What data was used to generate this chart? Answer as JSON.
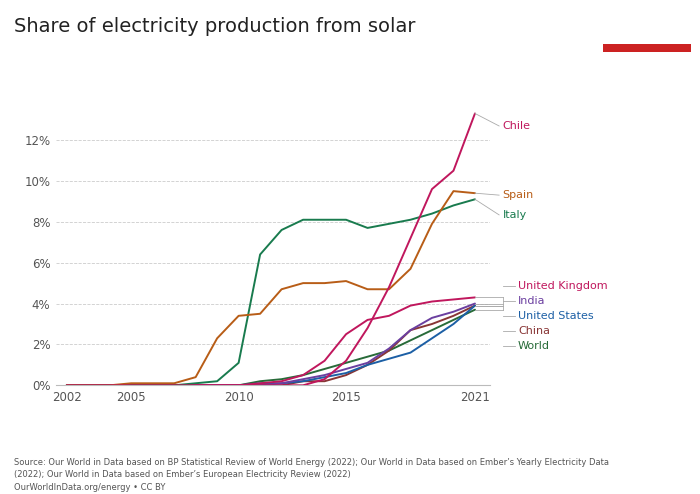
{
  "title": "Share of electricity production from solar",
  "years": [
    2002,
    2003,
    2004,
    2005,
    2006,
    2007,
    2008,
    2009,
    2010,
    2011,
    2012,
    2013,
    2014,
    2015,
    2016,
    2017,
    2018,
    2019,
    2020,
    2021
  ],
  "series": {
    "Chile": {
      "color": "#C0175D",
      "values": [
        0.0,
        0.0,
        0.0,
        0.0,
        0.0,
        0.0,
        0.0,
        0.0,
        0.0,
        0.0,
        0.0,
        0.0,
        0.3,
        1.2,
        2.8,
        4.8,
        7.2,
        9.6,
        10.5,
        13.3
      ]
    },
    "Spain": {
      "color": "#B85D17",
      "values": [
        0.0,
        0.0,
        0.0,
        0.1,
        0.1,
        0.1,
        0.4,
        2.3,
        3.4,
        3.5,
        4.7,
        5.0,
        5.0,
        5.1,
        4.7,
        4.7,
        5.7,
        7.9,
        9.5,
        9.4
      ]
    },
    "Italy": {
      "color": "#197B4E",
      "values": [
        0.0,
        0.0,
        0.0,
        0.0,
        0.0,
        0.0,
        0.1,
        0.2,
        1.1,
        6.4,
        7.6,
        8.1,
        8.1,
        8.1,
        7.7,
        7.9,
        8.1,
        8.4,
        8.8,
        9.1
      ]
    },
    "United Kingdom": {
      "color": "#C0175D",
      "values": [
        0.0,
        0.0,
        0.0,
        0.0,
        0.0,
        0.0,
        0.0,
        0.0,
        0.0,
        0.1,
        0.2,
        0.5,
        1.2,
        2.5,
        3.2,
        3.4,
        3.9,
        4.1,
        4.2,
        4.3
      ]
    },
    "India": {
      "color": "#6B3FA0",
      "values": [
        0.0,
        0.0,
        0.0,
        0.0,
        0.0,
        0.0,
        0.0,
        0.0,
        0.0,
        0.0,
        0.1,
        0.3,
        0.5,
        0.8,
        1.1,
        1.8,
        2.7,
        3.3,
        3.6,
        4.0
      ]
    },
    "United States": {
      "color": "#1C5FA5",
      "values": [
        0.0,
        0.0,
        0.0,
        0.0,
        0.0,
        0.0,
        0.0,
        0.0,
        0.0,
        0.1,
        0.1,
        0.2,
        0.4,
        0.6,
        1.0,
        1.3,
        1.6,
        2.3,
        3.0,
        3.9
      ]
    },
    "China": {
      "color": "#883535",
      "values": [
        0.0,
        0.0,
        0.0,
        0.0,
        0.0,
        0.0,
        0.0,
        0.0,
        0.0,
        0.0,
        0.0,
        0.2,
        0.2,
        0.5,
        1.0,
        1.7,
        2.7,
        3.0,
        3.4,
        3.9
      ]
    },
    "World": {
      "color": "#286B39",
      "values": [
        0.0,
        0.0,
        0.0,
        0.0,
        0.0,
        0.0,
        0.0,
        0.0,
        0.0,
        0.2,
        0.3,
        0.5,
        0.8,
        1.1,
        1.4,
        1.7,
        2.2,
        2.7,
        3.2,
        3.7
      ]
    }
  },
  "ylim": [
    0,
    0.145
  ],
  "yticks": [
    0.0,
    0.02,
    0.04,
    0.06,
    0.08,
    0.1,
    0.12
  ],
  "ytick_labels": [
    "0%",
    "2%",
    "4%",
    "6%",
    "8%",
    "10%",
    "12%"
  ],
  "xticks": [
    2002,
    2005,
    2010,
    2015,
    2021
  ],
  "source_text": "Source: Our World in Data based on BP Statistical Review of World Energy (2022); Our World in Data based on Ember’s Yearly Electricity Data\n(2022); Our World in Data based on Ember’s European Electricity Review (2022)\nOurWorldInData.org/energy • CC BY",
  "background_color": "#FFFFFF",
  "logo_bg": "#1A3A5C",
  "logo_red": "#CC2222"
}
